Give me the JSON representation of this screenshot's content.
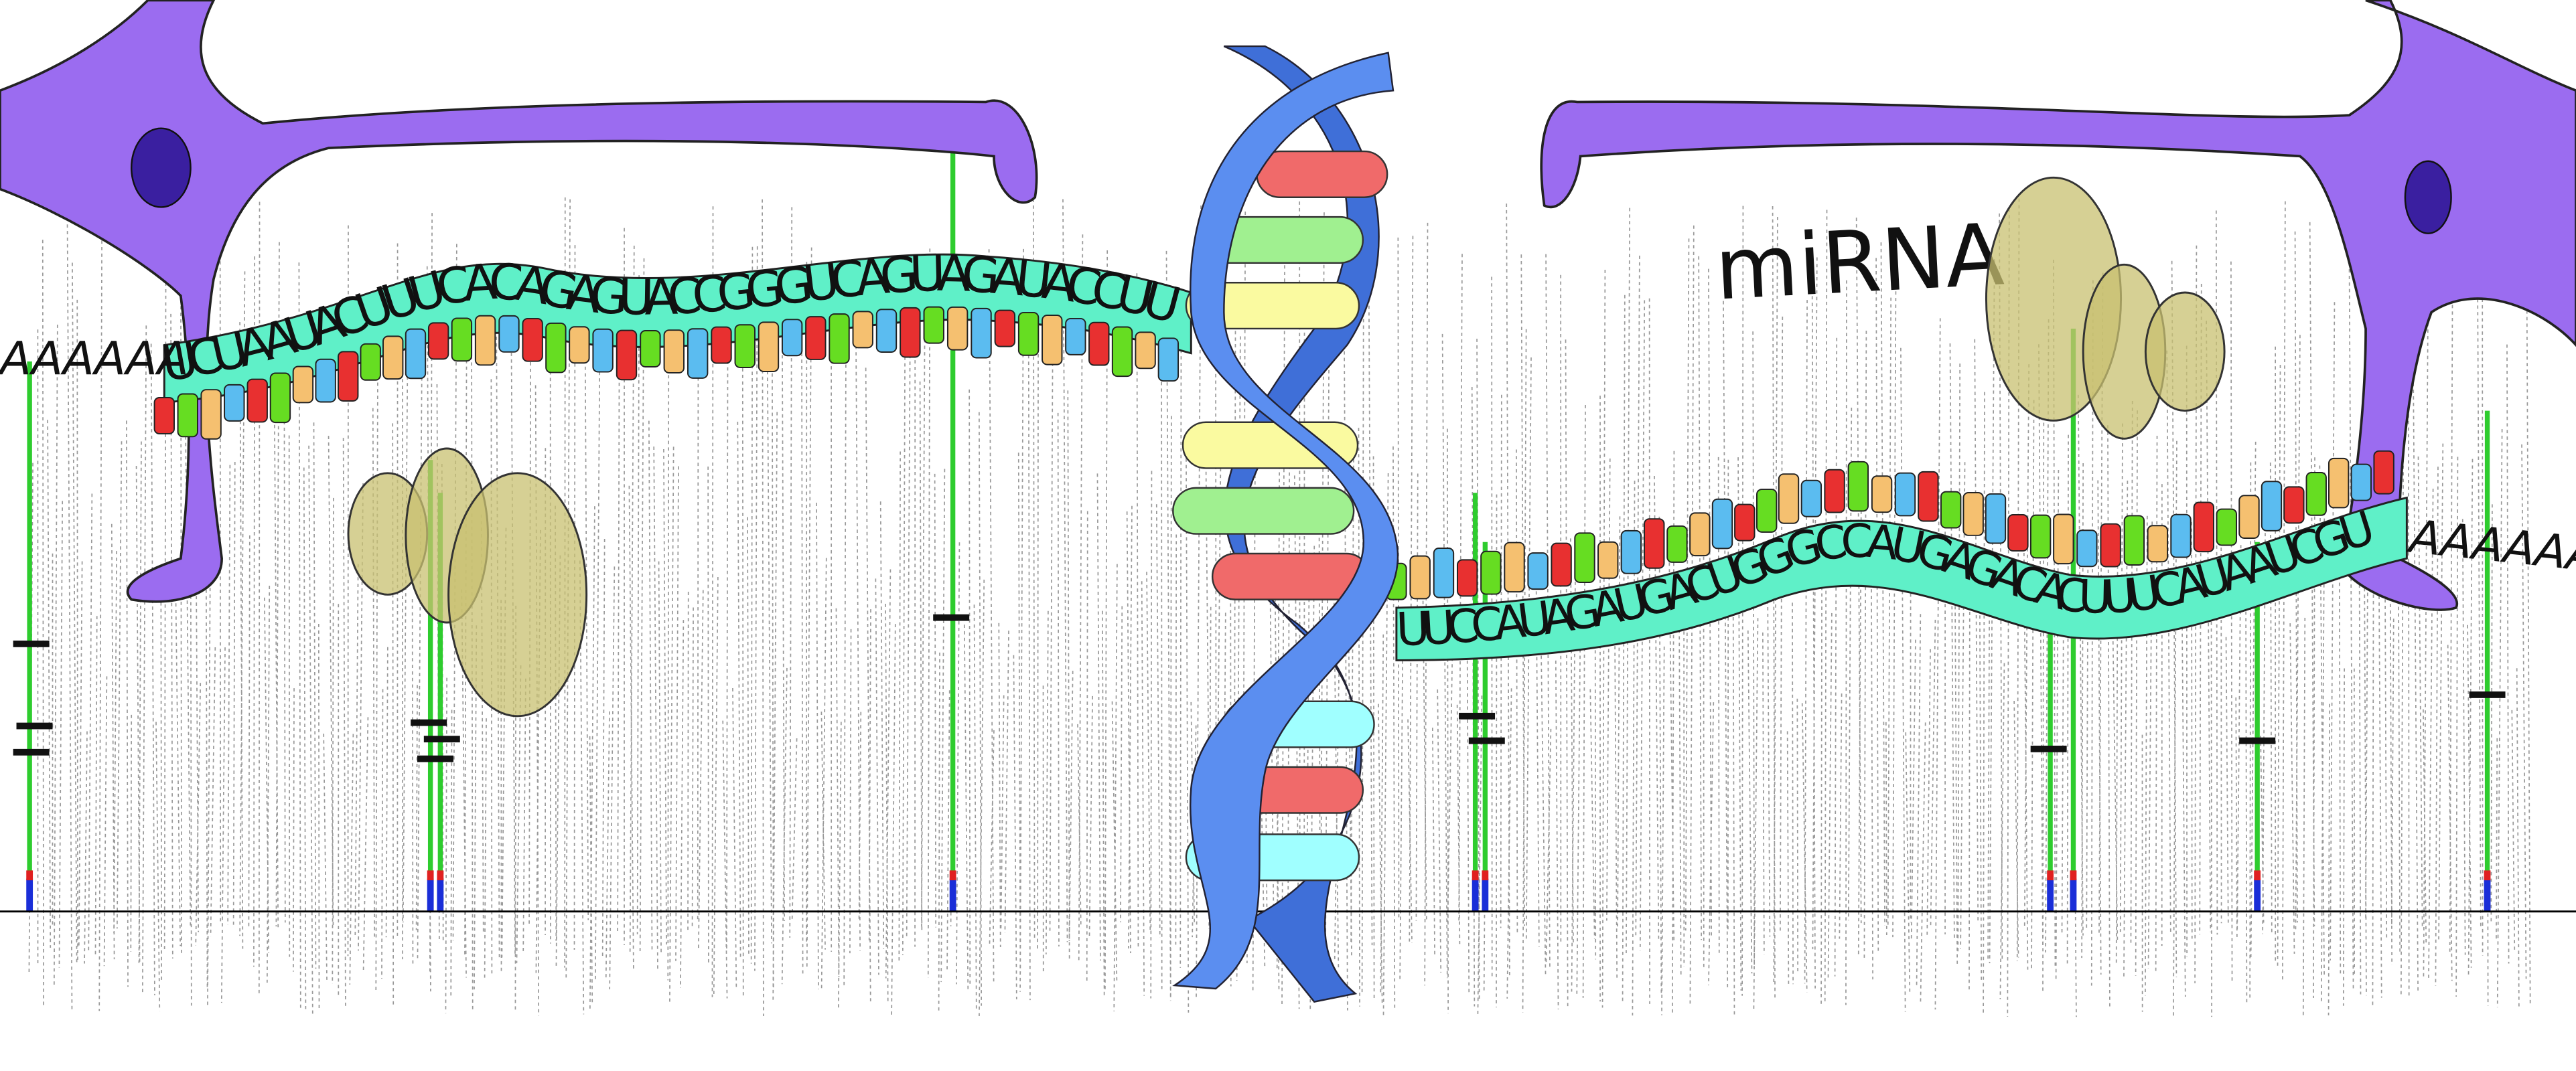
{
  "labels": {
    "left_tail": "AAAAAA",
    "upper_strand": "UCUAAUACUUUCACAGAGUACCGGGUCAGUAGAUACCUU",
    "mirna": "miRNA",
    "lower_strand": "UUCCAUAGAUGACUGGGCCAUGAGACACUUUCAUAAUCGU",
    "right_tail": "AAAAAAA"
  }
}
